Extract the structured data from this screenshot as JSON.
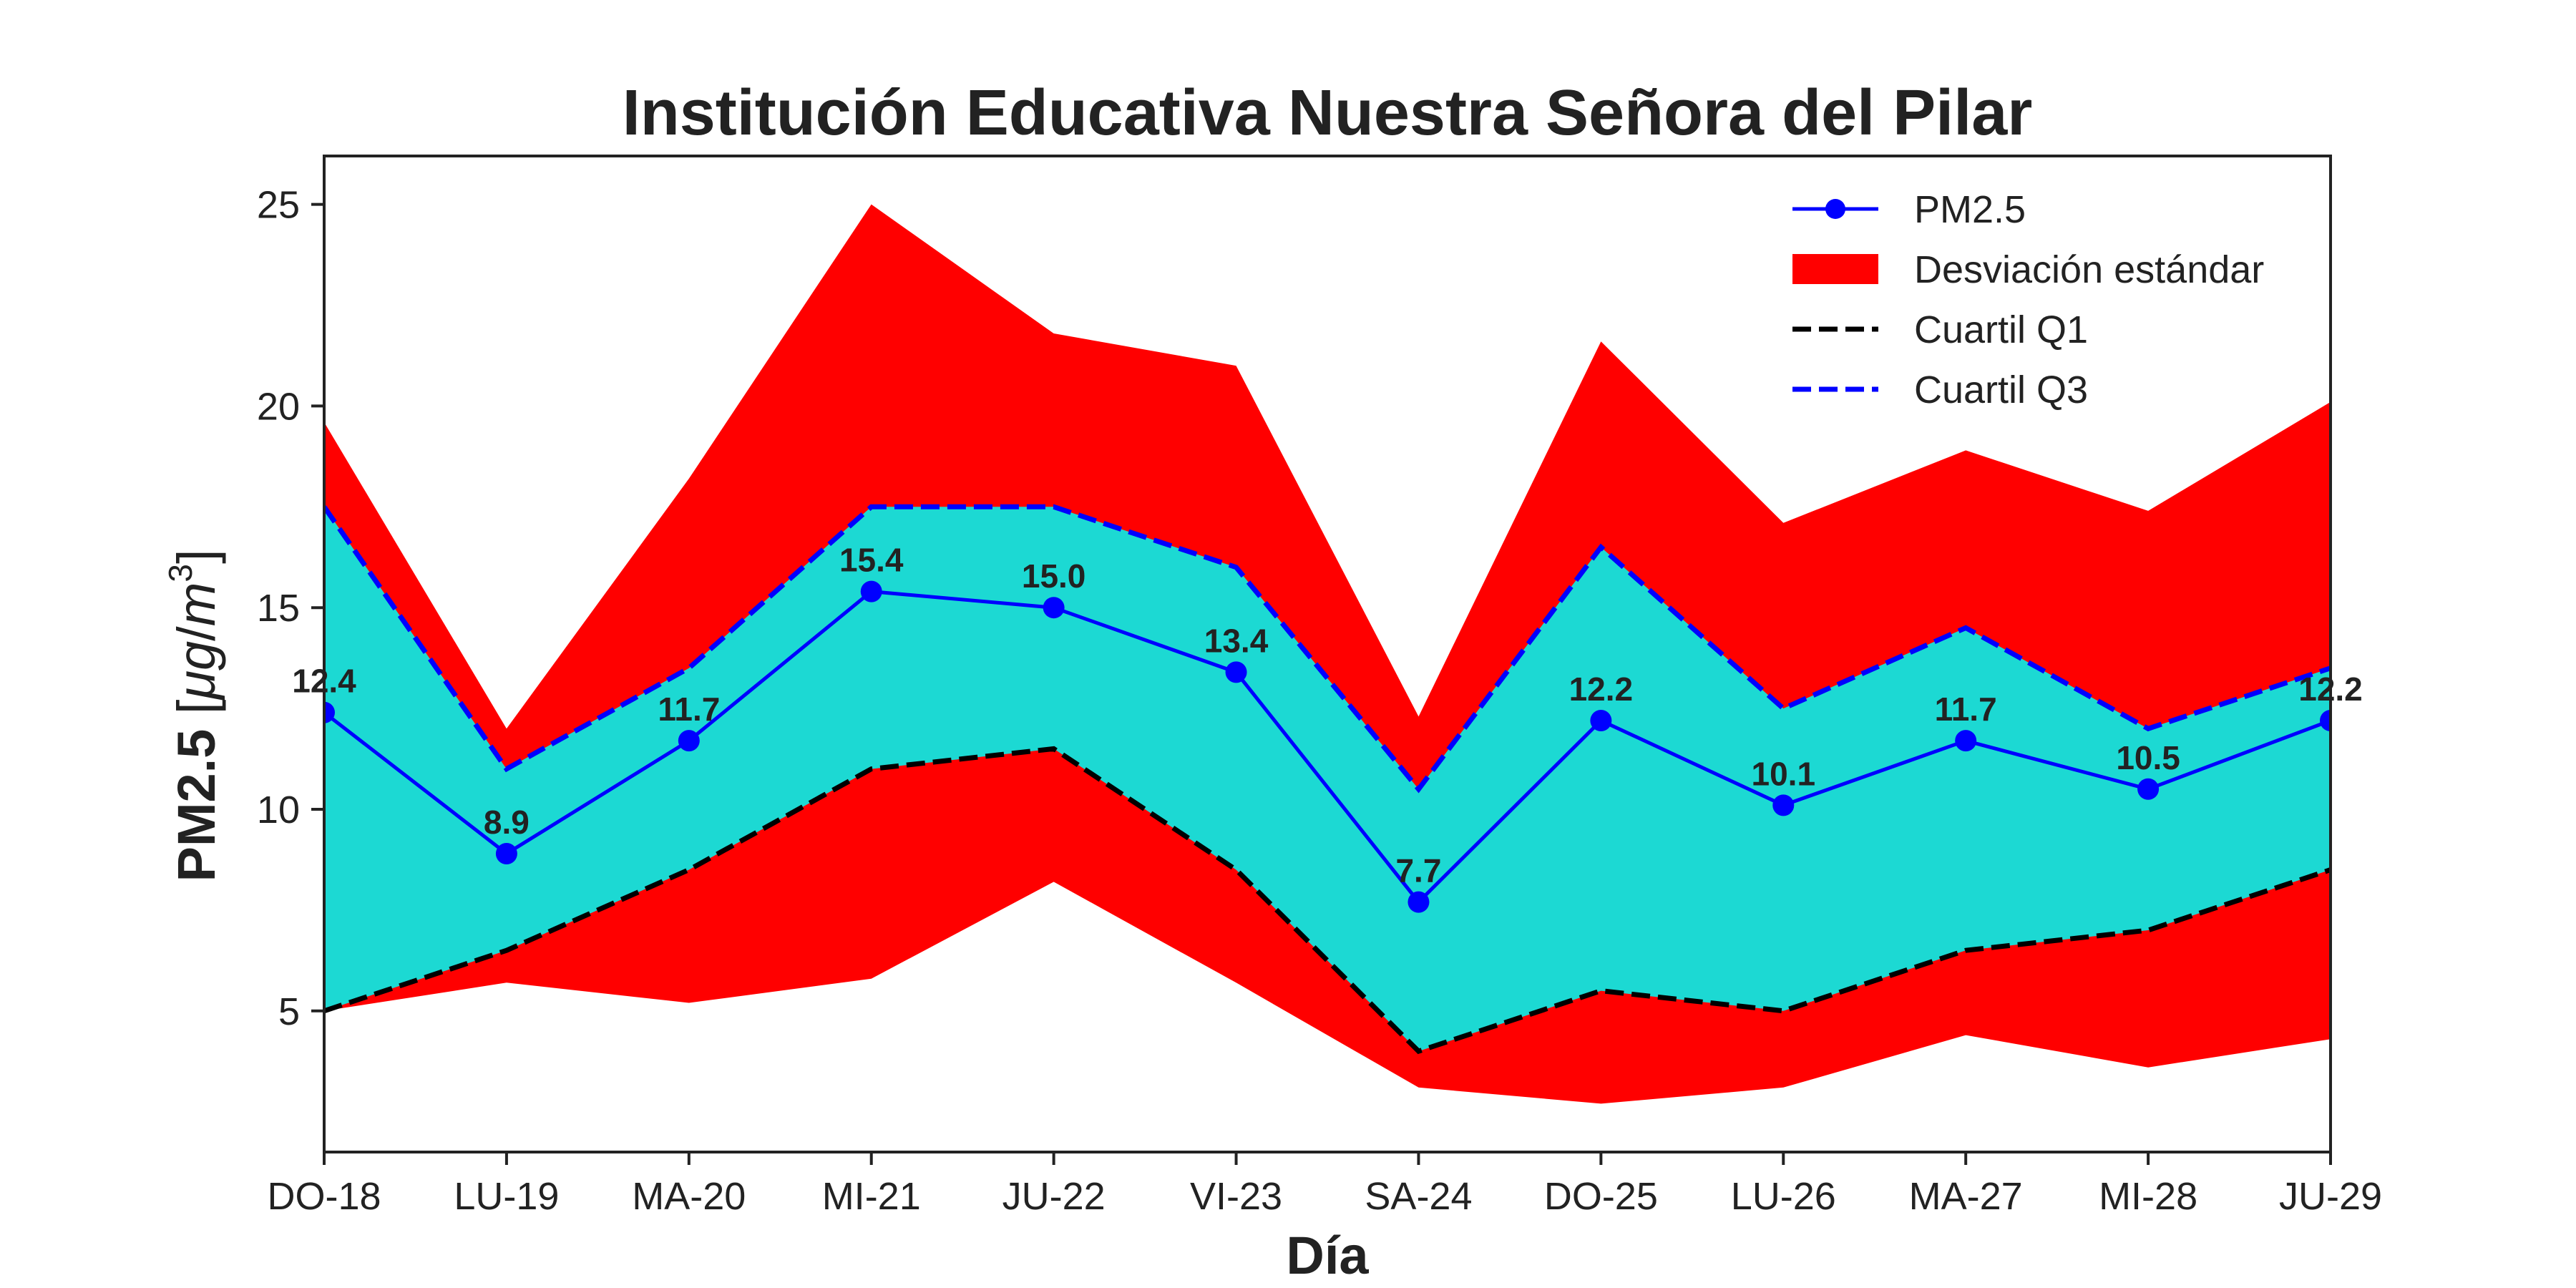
{
  "chart_data": {
    "type": "line",
    "title": "Institución Educativa Nuestra Señora del Pilar",
    "xlabel": "Día",
    "ylabel": "PM2.5",
    "ylabel_unit_prefix": " [",
    "ylabel_unit_mu": "μ",
    "ylabel_unit_g": "g",
    "ylabel_unit_slash": "/",
    "ylabel_unit_m": "m",
    "ylabel_unit_exp": "3",
    "ylabel_unit_suffix": "]",
    "categories": [
      "DO-18",
      "LU-19",
      "MA-20",
      "MI-21",
      "JU-22",
      "VI-23",
      "SA-24",
      "DO-25",
      "LU-26",
      "MA-27",
      "MI-28",
      "JU-29"
    ],
    "ylim": [
      1.5,
      26.2
    ],
    "yticks": [
      5,
      10,
      15,
      20,
      25
    ],
    "grid": false,
    "legend_position": "top-right",
    "series": [
      {
        "name": "PM2.5",
        "kind": "line-marker",
        "color": "#0000ff",
        "values": [
          12.4,
          8.9,
          11.7,
          15.4,
          15.0,
          13.4,
          7.7,
          12.2,
          10.1,
          11.7,
          10.5,
          12.2
        ],
        "labels": [
          "12.4",
          "8.9",
          "11.7",
          "15.4",
          "15.0",
          "13.4",
          "7.7",
          "12.2",
          "10.1",
          "11.7",
          "10.5",
          "12.2"
        ]
      },
      {
        "name": "Desviación estándar",
        "kind": "band",
        "color": "#ff0000",
        "upper": [
          19.6,
          12.0,
          18.2,
          25.0,
          21.8,
          21.0,
          12.3,
          21.6,
          17.1,
          18.9,
          17.4,
          20.1
        ],
        "lower": [
          5.0,
          5.7,
          5.2,
          5.8,
          8.2,
          5.7,
          3.1,
          2.7,
          3.1,
          4.4,
          3.6,
          4.3
        ]
      },
      {
        "name": "Cuartil Q1",
        "kind": "dashed-line",
        "color": "#000000",
        "values": [
          5.0,
          6.5,
          8.5,
          11.0,
          11.5,
          8.5,
          4.0,
          5.5,
          5.0,
          6.5,
          7.0,
          8.5
        ]
      },
      {
        "name": "Cuartil Q3",
        "kind": "dashed-line",
        "color": "#0000ff",
        "values": [
          17.5,
          11.0,
          13.5,
          17.5,
          17.5,
          16.0,
          10.5,
          16.5,
          12.5,
          14.5,
          12.0,
          13.5
        ]
      }
    ],
    "iqr_fill_color": "#1cd9d3"
  }
}
